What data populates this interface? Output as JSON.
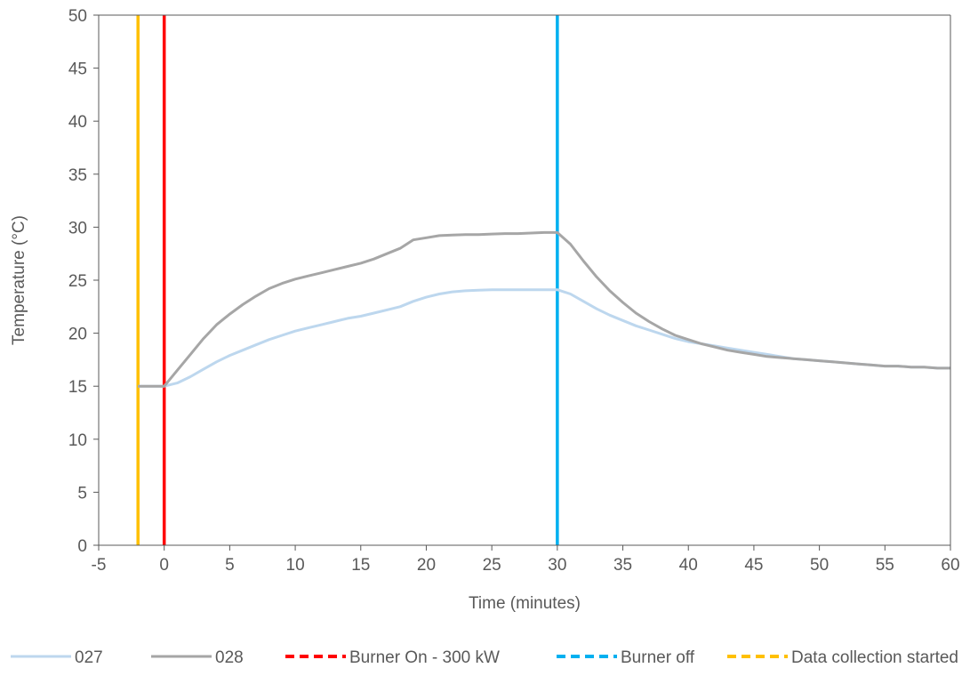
{
  "chart_data": {
    "type": "line",
    "title": "",
    "xlabel": "Time (minutes)",
    "ylabel": "Temperature (°C)",
    "xlim": [
      -5,
      60
    ],
    "ylim": [
      0,
      50
    ],
    "x_ticks": [
      "-5",
      "0",
      "5",
      "10",
      "15",
      "20",
      "25",
      "30",
      "35",
      "40",
      "45",
      "50",
      "55",
      "60"
    ],
    "y_ticks": [
      "0",
      "5",
      "10",
      "15",
      "20",
      "25",
      "30",
      "35",
      "40",
      "45",
      "50"
    ],
    "grid": false,
    "legend_position": "bottom",
    "series": [
      {
        "name": "027",
        "color": "#bdd7ee",
        "x": [
          -2,
          -1,
          0,
          1,
          2,
          3,
          4,
          5,
          6,
          7,
          8,
          9,
          10,
          11,
          12,
          13,
          14,
          15,
          16,
          17,
          18,
          19,
          20,
          21,
          22,
          23,
          24,
          25,
          26,
          27,
          28,
          29,
          30,
          31,
          32,
          33,
          34,
          35,
          36,
          37,
          38,
          39,
          40,
          41,
          42,
          43,
          44,
          45,
          46,
          47,
          48,
          49,
          50,
          51,
          52,
          53,
          54,
          55,
          56,
          57,
          58,
          59,
          60
        ],
        "values": [
          15.0,
          15.0,
          15.0,
          15.3,
          15.9,
          16.6,
          17.3,
          17.9,
          18.4,
          18.9,
          19.4,
          19.8,
          20.2,
          20.5,
          20.8,
          21.1,
          21.4,
          21.6,
          21.9,
          22.2,
          22.5,
          23.0,
          23.4,
          23.7,
          23.9,
          24.0,
          24.05,
          24.1,
          24.1,
          24.1,
          24.1,
          24.1,
          24.1,
          23.7,
          23.0,
          22.3,
          21.7,
          21.2,
          20.7,
          20.3,
          19.9,
          19.5,
          19.2,
          19.0,
          18.8,
          18.6,
          18.4,
          18.2,
          18.0,
          17.8,
          17.6,
          17.5,
          17.4,
          17.3,
          17.2,
          17.1,
          17.0,
          16.9,
          16.9,
          16.8,
          16.8,
          16.7,
          16.7
        ]
      },
      {
        "name": "028",
        "color": "#a6a6a6",
        "x": [
          -2,
          -1,
          0,
          1,
          2,
          3,
          4,
          5,
          6,
          7,
          8,
          9,
          10,
          11,
          12,
          13,
          14,
          15,
          16,
          17,
          18,
          19,
          20,
          21,
          22,
          23,
          24,
          25,
          26,
          27,
          28,
          29,
          30,
          31,
          32,
          33,
          34,
          35,
          36,
          37,
          38,
          39,
          40,
          41,
          42,
          43,
          44,
          45,
          46,
          47,
          48,
          49,
          50,
          51,
          52,
          53,
          54,
          55,
          56,
          57,
          58,
          59,
          60
        ],
        "values": [
          15.0,
          15.0,
          15.0,
          16.5,
          18.0,
          19.5,
          20.8,
          21.8,
          22.7,
          23.5,
          24.2,
          24.7,
          25.1,
          25.4,
          25.7,
          26.0,
          26.3,
          26.6,
          27.0,
          27.5,
          28.0,
          28.8,
          29.0,
          29.2,
          29.25,
          29.3,
          29.3,
          29.35,
          29.4,
          29.4,
          29.45,
          29.5,
          29.5,
          28.4,
          26.8,
          25.3,
          24.0,
          22.9,
          21.9,
          21.1,
          20.4,
          19.8,
          19.4,
          19.0,
          18.7,
          18.4,
          18.2,
          18.0,
          17.8,
          17.7,
          17.6,
          17.5,
          17.4,
          17.3,
          17.2,
          17.1,
          17.0,
          16.9,
          16.9,
          16.8,
          16.8,
          16.7,
          16.7
        ]
      }
    ],
    "vertical_lines": [
      {
        "name": "Burner On - 300 kW",
        "x": 0,
        "color": "#ff0000",
        "style": "dashed"
      },
      {
        "name": "Burner off",
        "x": 30,
        "color": "#00b0f0",
        "style": "dashed"
      },
      {
        "name": "Data collection started",
        "x": -2,
        "color": "#ffc000",
        "style": "dashed"
      }
    ],
    "legend": [
      {
        "label": "027",
        "color": "#bdd7ee",
        "style": "solid"
      },
      {
        "label": "028",
        "color": "#a6a6a6",
        "style": "solid"
      },
      {
        "label": "Burner On - 300 kW",
        "color": "#ff0000",
        "style": "dashed"
      },
      {
        "label": "Burner off",
        "color": "#00b0f0",
        "style": "dashed"
      },
      {
        "label": "Data collection started",
        "color": "#ffc000",
        "style": "dashed"
      }
    ],
    "axis_color": "#595959"
  }
}
